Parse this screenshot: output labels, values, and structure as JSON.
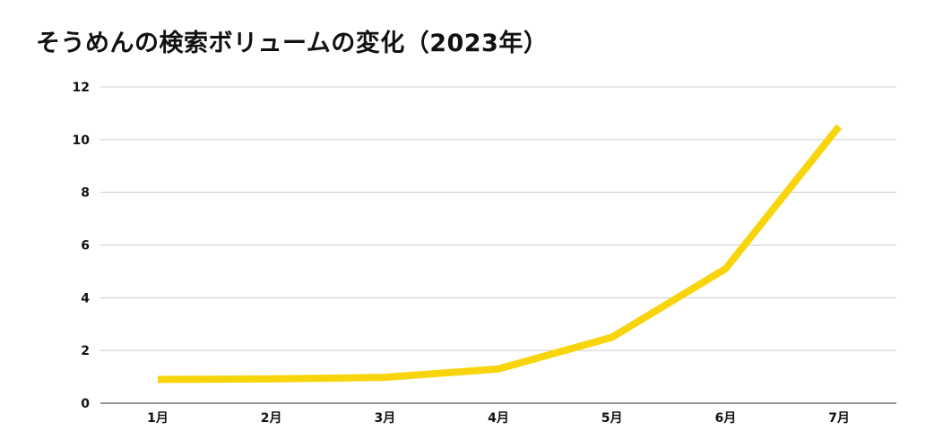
{
  "chart_data": {
    "type": "line",
    "title": "そうめんの検索ボリュームの変化（2023年）",
    "xlabel": "",
    "ylabel": "",
    "categories": [
      "1月",
      "2月",
      "3月",
      "4月",
      "5月",
      "6月",
      "7月"
    ],
    "series": [
      {
        "values": [
          0.9,
          0.92,
          0.98,
          1.3,
          2.5,
          5.1,
          10.5
        ]
      }
    ],
    "ylim": [
      0,
      12
    ],
    "yticks": [
      "0",
      "2",
      "4",
      "6",
      "8",
      "10",
      "12"
    ],
    "grid": true,
    "legend": "none",
    "line_color": "#f8d40a",
    "grid_color": "#cccccc"
  }
}
